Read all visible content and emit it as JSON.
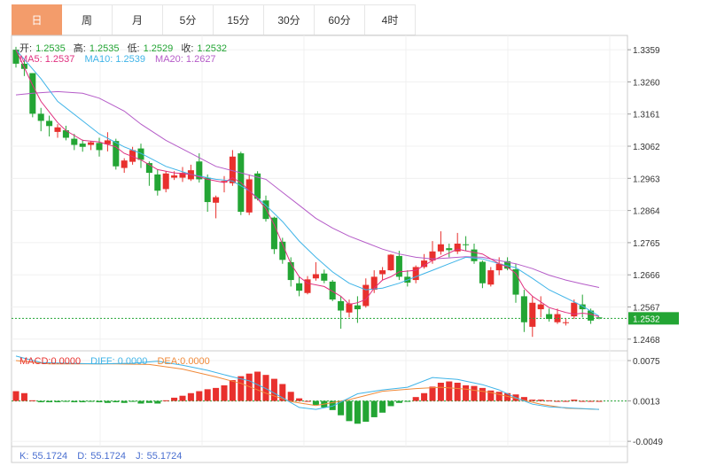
{
  "tabs": [
    {
      "label": "日",
      "active": true
    },
    {
      "label": "周",
      "active": false
    },
    {
      "label": "月",
      "active": false
    },
    {
      "label": "5分",
      "active": false
    },
    {
      "label": "15分",
      "active": false
    },
    {
      "label": "30分",
      "active": false
    },
    {
      "label": "60分",
      "active": false
    },
    {
      "label": "4时",
      "active": false
    }
  ],
  "ohlc_legend": {
    "open_label": "开:",
    "open_value": "1.2535",
    "high_label": "高:",
    "high_value": "1.2535",
    "low_label": "低:",
    "low_value": "1.2529",
    "close_label": "收:",
    "close_value": "1.2532"
  },
  "ma_legend": {
    "ma5_label": "MA5:",
    "ma5_value": "1.2537",
    "ma10_label": "MA10:",
    "ma10_value": "1.2539",
    "ma20_label": "MA20:",
    "ma20_value": "1.2627"
  },
  "macd_legend": {
    "macd_label": "MACD:",
    "macd_value": "0.0000",
    "diff_label": "DIFF:",
    "diff_value": "0.0000",
    "dea_label": "DEA:",
    "dea_value": "0.0000"
  },
  "kdj_legend": {
    "k_label": "K:",
    "k_value": "55.1724",
    "d_label": "D:",
    "d_value": "55.1724",
    "j_label": "J:",
    "j_value": "55.1724"
  },
  "current_price": "1.2532",
  "colors": {
    "up": "#e8302d",
    "down": "#23a534",
    "ma5": "#e0307f",
    "ma10": "#3fb4e8",
    "ma20": "#b55cc8",
    "diff": "#3fb4e8",
    "dea": "#f08a3a",
    "tab_active": "#f39c6b"
  },
  "chart_data": [
    {
      "type": "candlestick",
      "y_ticks": [
        "1.3359",
        "1.3260",
        "1.3161",
        "1.3062",
        "1.2963",
        "1.2864",
        "1.2765",
        "1.2666",
        "1.2567",
        "1.2468"
      ],
      "ylim": [
        1.2432,
        1.3403
      ],
      "ohlc": [
        [
          1.3359,
          1.3368,
          1.3304,
          1.3316
        ],
        [
          1.3316,
          1.3325,
          1.3278,
          1.33
        ],
        [
          1.3287,
          1.3287,
          1.3151,
          1.3162
        ],
        [
          1.3162,
          1.318,
          1.3108,
          1.314
        ],
        [
          1.314,
          1.3156,
          1.3092,
          1.3124
        ],
        [
          1.3106,
          1.313,
          1.3088,
          1.312
        ],
        [
          1.3111,
          1.3125,
          1.308,
          1.3088
        ],
        [
          1.3085,
          1.31,
          1.305,
          1.3066
        ],
        [
          1.307,
          1.3082,
          1.3045,
          1.306
        ],
        [
          1.3066,
          1.3077,
          1.305,
          1.3074
        ],
        [
          1.3072,
          1.3088,
          1.303,
          1.305
        ],
        [
          1.3068,
          1.3105,
          1.3046,
          1.308
        ],
        [
          1.3078,
          1.3085,
          1.299,
          1.3
        ],
        [
          1.2995,
          1.3025,
          1.298,
          1.3018
        ],
        [
          1.3014,
          1.306,
          1.3005,
          1.305
        ],
        [
          1.3055,
          1.307,
          1.2995,
          1.302
        ],
        [
          1.301,
          1.3015,
          1.294,
          1.298
        ],
        [
          1.2975,
          1.299,
          1.291,
          1.2925
        ],
        [
          1.293,
          1.2985,
          1.292,
          1.2978
        ],
        [
          1.2965,
          1.2985,
          1.2958,
          1.2972
        ],
        [
          1.2965,
          1.2998,
          1.2952,
          1.298
        ],
        [
          1.296,
          1.3005,
          1.2955,
          1.2988
        ],
        [
          1.3015,
          1.304,
          1.295,
          1.296
        ],
        [
          1.2965,
          1.2975,
          1.286,
          1.289
        ],
        [
          1.2888,
          1.291,
          1.284,
          1.2905
        ],
        [
          1.295,
          1.297,
          1.292,
          1.2955
        ],
        [
          1.2948,
          1.305,
          1.294,
          1.303
        ],
        [
          1.304,
          1.3045,
          1.285,
          1.286
        ],
        [
          1.2858,
          1.2975,
          1.285,
          1.296
        ],
        [
          1.2978,
          1.2985,
          1.2895,
          1.29
        ],
        [
          1.2895,
          1.291,
          1.283,
          1.2838
        ],
        [
          1.2842,
          1.2845,
          1.273,
          1.2745
        ],
        [
          1.2768,
          1.278,
          1.27,
          1.2712
        ],
        [
          1.2705,
          1.272,
          1.263,
          1.265
        ],
        [
          1.264,
          1.266,
          1.26,
          1.2617
        ],
        [
          1.261,
          1.2662,
          1.2606,
          1.2652
        ],
        [
          1.2655,
          1.2705,
          1.2648,
          1.2668
        ],
        [
          1.267,
          1.2682,
          1.264,
          1.2648
        ],
        [
          1.2645,
          1.265,
          1.2585,
          1.259
        ],
        [
          1.2585,
          1.26,
          1.25,
          1.2556
        ],
        [
          1.255,
          1.259,
          1.2535,
          1.2578
        ],
        [
          1.2572,
          1.26,
          1.2518,
          1.256
        ],
        [
          1.257,
          1.2655,
          1.2565,
          1.2635
        ],
        [
          1.262,
          1.268,
          1.261,
          1.266
        ],
        [
          1.2668,
          1.269,
          1.265,
          1.268
        ],
        [
          1.268,
          1.273,
          1.2678,
          1.2728
        ],
        [
          1.2724,
          1.274,
          1.265,
          1.266
        ],
        [
          1.266,
          1.268,
          1.263,
          1.2642
        ],
        [
          1.265,
          1.2695,
          1.264,
          1.269
        ],
        [
          1.269,
          1.273,
          1.2685,
          1.271
        ],
        [
          1.271,
          1.277,
          1.27,
          1.2738
        ],
        [
          1.2738,
          1.28,
          1.2728,
          1.276
        ],
        [
          1.2748,
          1.2762,
          1.272,
          1.2742
        ],
        [
          1.2738,
          1.2795,
          1.273,
          1.2762
        ],
        [
          1.276,
          1.2785,
          1.274,
          1.2758
        ],
        [
          1.2744,
          1.2762,
          1.27,
          1.2708
        ],
        [
          1.2706,
          1.271,
          1.2625,
          1.264
        ],
        [
          1.2636,
          1.269,
          1.263,
          1.268
        ],
        [
          1.268,
          1.272,
          1.2665,
          1.27
        ],
        [
          1.2708,
          1.272,
          1.268,
          1.2685
        ],
        [
          1.2683,
          1.27,
          1.258,
          1.2605
        ],
        [
          1.26,
          1.262,
          1.249,
          1.252
        ],
        [
          1.2506,
          1.26,
          1.2475,
          1.258
        ],
        [
          1.256,
          1.26,
          1.2535,
          1.2575
        ],
        [
          1.2545,
          1.2562,
          1.2522,
          1.253
        ],
        [
          1.252,
          1.2562,
          1.2515,
          1.2545
        ],
        [
          1.252,
          1.253,
          1.251,
          1.252
        ],
        [
          1.2538,
          1.259,
          1.253,
          1.258
        ],
        [
          1.2575,
          1.2605,
          1.2535,
          1.256
        ],
        [
          1.2556,
          1.2562,
          1.2515,
          1.2525
        ],
        [
          1.2535,
          1.2535,
          1.2529,
          1.2532
        ]
      ],
      "ma5": [
        [
          0,
          1.3359
        ],
        [
          2,
          1.325
        ],
        [
          3,
          1.32
        ],
        [
          5,
          1.3135
        ],
        [
          6,
          1.311
        ],
        [
          8,
          1.308
        ],
        [
          10,
          1.3075
        ],
        [
          12,
          1.306
        ],
        [
          13,
          1.304
        ],
        [
          15,
          1.302
        ],
        [
          17,
          1.299
        ],
        [
          19,
          1.298
        ],
        [
          21,
          1.2975
        ],
        [
          23,
          1.296
        ],
        [
          25,
          1.295
        ],
        [
          26,
          1.2965
        ],
        [
          27,
          1.295
        ],
        [
          29,
          1.29
        ],
        [
          30,
          1.287
        ],
        [
          31,
          1.282
        ],
        [
          32,
          1.276
        ],
        [
          33,
          1.27
        ],
        [
          34,
          1.266
        ],
        [
          35,
          1.264
        ],
        [
          37,
          1.263
        ],
        [
          39,
          1.26
        ],
        [
          40,
          1.2575
        ],
        [
          41,
          1.258
        ],
        [
          42,
          1.259
        ],
        [
          43,
          1.2625
        ],
        [
          44,
          1.265
        ],
        [
          45,
          1.266
        ],
        [
          46,
          1.2675
        ],
        [
          48,
          1.268
        ],
        [
          50,
          1.271
        ],
        [
          53,
          1.2745
        ],
        [
          54,
          1.274
        ],
        [
          56,
          1.273
        ],
        [
          58,
          1.27
        ],
        [
          59,
          1.269
        ],
        [
          60,
          1.267
        ],
        [
          61,
          1.2625
        ],
        [
          62,
          1.26
        ],
        [
          64,
          1.2565
        ],
        [
          66,
          1.255
        ],
        [
          67,
          1.2545
        ],
        [
          68,
          1.2548
        ],
        [
          69,
          1.2545
        ],
        [
          70,
          1.2537
        ]
      ],
      "ma10": [
        [
          0,
          1.3359
        ],
        [
          3,
          1.327
        ],
        [
          5,
          1.32
        ],
        [
          8,
          1.314
        ],
        [
          10,
          1.31
        ],
        [
          13,
          1.306
        ],
        [
          15,
          1.304
        ],
        [
          18,
          1.3
        ],
        [
          21,
          1.2975
        ],
        [
          24,
          1.296
        ],
        [
          26,
          1.2955
        ],
        [
          28,
          1.2925
        ],
        [
          30,
          1.288
        ],
        [
          32,
          1.283
        ],
        [
          34,
          1.277
        ],
        [
          36,
          1.272
        ],
        [
          38,
          1.2675
        ],
        [
          40,
          1.264
        ],
        [
          42,
          1.262
        ],
        [
          44,
          1.2625
        ],
        [
          46,
          1.264
        ],
        [
          48,
          1.266
        ],
        [
          50,
          1.268
        ],
        [
          52,
          1.27
        ],
        [
          54,
          1.272
        ],
        [
          56,
          1.2715
        ],
        [
          58,
          1.27
        ],
        [
          60,
          1.2688
        ],
        [
          62,
          1.2655
        ],
        [
          64,
          1.262
        ],
        [
          66,
          1.2595
        ],
        [
          68,
          1.257
        ],
        [
          70,
          1.2539
        ]
      ],
      "ma20": [
        [
          0,
          1.322
        ],
        [
          2,
          1.3225
        ],
        [
          5,
          1.323
        ],
        [
          8,
          1.3225
        ],
        [
          10,
          1.321
        ],
        [
          13,
          1.317
        ],
        [
          15,
          1.313
        ],
        [
          18,
          1.308
        ],
        [
          21,
          1.304
        ],
        [
          24,
          1.3
        ],
        [
          27,
          1.298
        ],
        [
          30,
          1.296
        ],
        [
          32,
          1.292
        ],
        [
          34,
          1.288
        ],
        [
          36,
          1.284
        ],
        [
          38,
          1.281
        ],
        [
          40,
          1.2785
        ],
        [
          42,
          1.2765
        ],
        [
          44,
          1.2745
        ],
        [
          46,
          1.273
        ],
        [
          48,
          1.272
        ],
        [
          50,
          1.2715
        ],
        [
          52,
          1.2718
        ],
        [
          54,
          1.2722
        ],
        [
          56,
          1.272
        ],
        [
          58,
          1.271
        ],
        [
          60,
          1.27
        ],
        [
          62,
          1.2685
        ],
        [
          64,
          1.2665
        ],
        [
          66,
          1.265
        ],
        [
          68,
          1.2638
        ],
        [
          70,
          1.2627
        ]
      ]
    },
    {
      "type": "bar",
      "name": "MACD",
      "y_ticks": [
        "0.0075",
        "0.0013",
        "-0.0049"
      ],
      "ylim": [
        -0.0057,
        0.009
      ],
      "values": [
        0.0015,
        0.0012,
        0.0001,
        -0.0002,
        -0.0002,
        -0.0002,
        -0.0001,
        -0.0002,
        -0.0002,
        -0.0001,
        -0.0002,
        -0.0003,
        -0.0002,
        -0.0003,
        -0.0001,
        -0.0004,
        -0.0003,
        -0.0004,
        0.0001,
        0.0005,
        0.0008,
        0.0012,
        0.0015,
        0.0018,
        0.002,
        0.0024,
        0.0032,
        0.0038,
        0.0042,
        0.0045,
        0.004,
        0.0034,
        0.0026,
        0.0014,
        0.0004,
        0.0,
        -0.0006,
        -0.001,
        -0.0014,
        -0.0022,
        -0.0031,
        -0.0035,
        -0.0032,
        -0.0025,
        -0.0018,
        -0.0008,
        -0.0003,
        -0.0001,
        0.0006,
        0.0012,
        0.0022,
        0.0028,
        0.003,
        0.0028,
        0.0024,
        0.0023,
        0.002,
        0.0016,
        0.0014,
        0.0012,
        0.001,
        0.0006,
        0.0002,
        0.0002,
        0.0001,
        0.0,
        0.0,
        0.0002,
        0.0,
        0.0,
        0.0
      ],
      "diff": [
        [
          0,
          0.0082
        ],
        [
          3,
          0.0072
        ],
        [
          6,
          0.0071
        ],
        [
          10,
          0.007
        ],
        [
          14,
          0.0071
        ],
        [
          17,
          0.0074
        ],
        [
          20,
          0.0068
        ],
        [
          23,
          0.006
        ],
        [
          26,
          0.005
        ],
        [
          28,
          0.0044
        ],
        [
          30,
          0.0032
        ],
        [
          32,
          0.0018
        ],
        [
          34,
          0.0003
        ],
        [
          36,
          0.0
        ],
        [
          38,
          0.0005
        ],
        [
          41,
          0.0024
        ],
        [
          44,
          0.003
        ],
        [
          47,
          0.0034
        ],
        [
          50,
          0.0049
        ],
        [
          53,
          0.0046
        ],
        [
          56,
          0.0038
        ],
        [
          58,
          0.003
        ],
        [
          60,
          0.0018
        ],
        [
          62,
          0.0008
        ],
        [
          64,
          0.0004
        ],
        [
          67,
          0.0002
        ],
        [
          70,
          0.0
        ]
      ],
      "dea": [
        [
          0,
          0.0075
        ],
        [
          4,
          0.007
        ],
        [
          8,
          0.007
        ],
        [
          12,
          0.007
        ],
        [
          16,
          0.0069
        ],
        [
          20,
          0.0062
        ],
        [
          24,
          0.005
        ],
        [
          27,
          0.004
        ],
        [
          30,
          0.0025
        ],
        [
          33,
          0.0012
        ],
        [
          36,
          0.0006
        ],
        [
          40,
          0.0015
        ],
        [
          44,
          0.0028
        ],
        [
          48,
          0.0032
        ],
        [
          51,
          0.0034
        ],
        [
          54,
          0.0031
        ],
        [
          57,
          0.0026
        ],
        [
          60,
          0.0017
        ],
        [
          63,
          0.0008
        ],
        [
          66,
          0.0002
        ],
        [
          70,
          0.0
        ]
      ]
    },
    {
      "type": "line",
      "name": "KDJ",
      "k": 55.1724,
      "d": 55.1724,
      "j": 55.1724
    }
  ]
}
